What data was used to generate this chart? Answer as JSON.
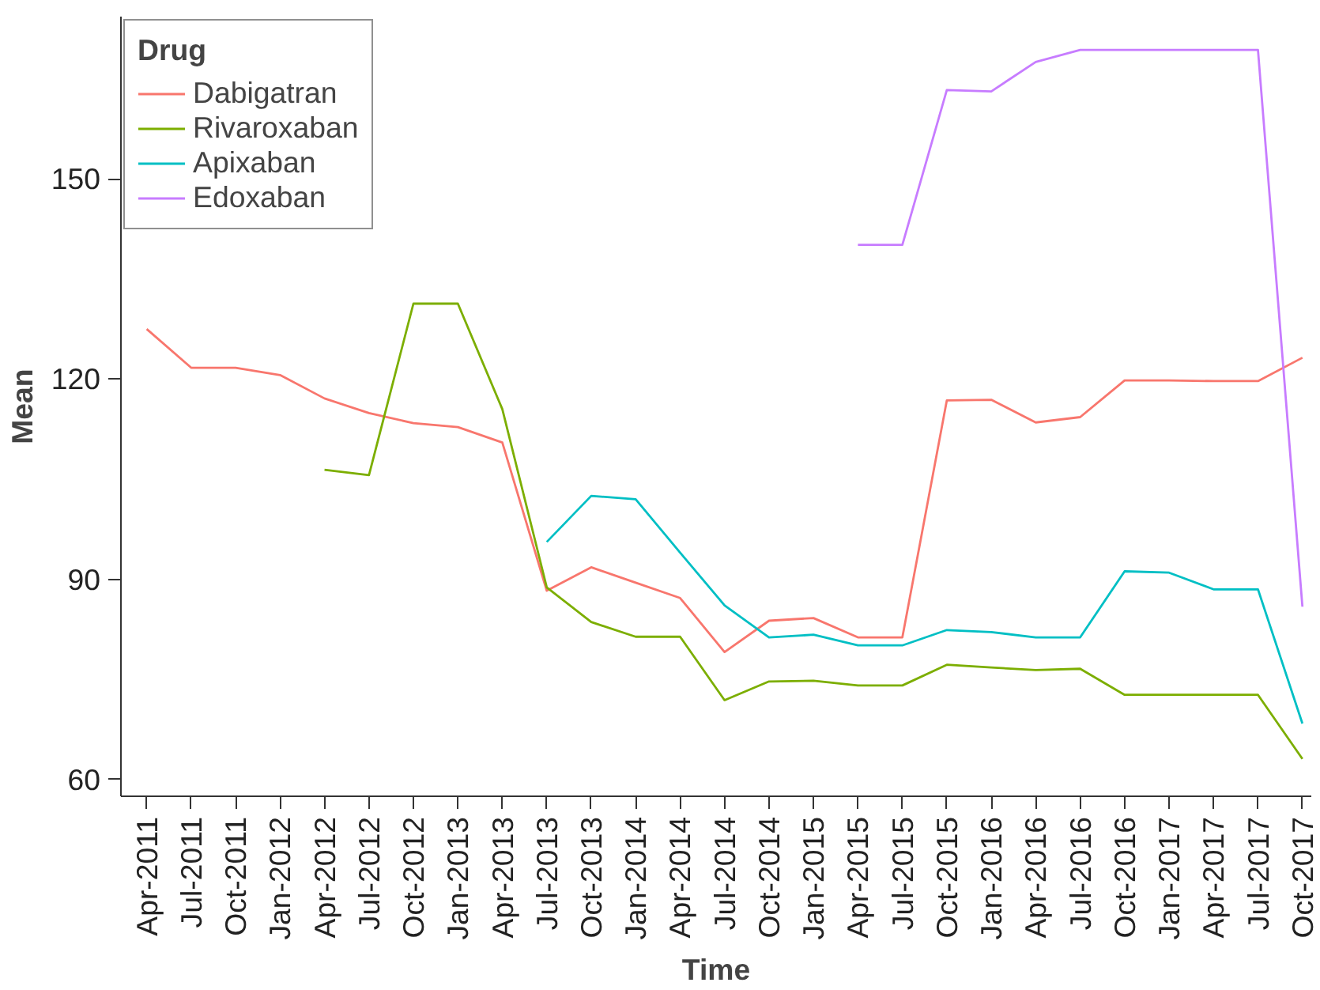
{
  "chart_data": {
    "type": "line",
    "xlabel": "Time",
    "ylabel": "Mean",
    "legend_title": "Drug",
    "legend": "top left",
    "grid": false,
    "categories": [
      "Apr-2011",
      "Jul-2011",
      "Oct-2011",
      "Jan-2012",
      "Apr-2012",
      "Jul-2012",
      "Oct-2012",
      "Jan-2013",
      "Apr-2013",
      "Jul-2013",
      "Oct-2013",
      "Jan-2014",
      "Apr-2014",
      "Jul-2014",
      "Oct-2014",
      "Jan-2015",
      "Apr-2015",
      "Jul-2015",
      "Oct-2015",
      "Jan-2016",
      "Apr-2016",
      "Jul-2016",
      "Oct-2016",
      "Jan-2017",
      "Apr-2017",
      "Jul-2017",
      "Oct-2017"
    ],
    "ylim": [
      57.5,
      174.3
    ],
    "yticks": [
      60,
      90,
      120,
      150
    ],
    "series": [
      {
        "name": "Dabigatran",
        "color": "#f8766d",
        "values": [
          127.5,
          121.7,
          121.7,
          120.6,
          117.1,
          114.9,
          113.4,
          112.8,
          110.5,
          88.3,
          91.8,
          89.5,
          87.2,
          79.1,
          83.8,
          84.2,
          81.3,
          81.3,
          116.8,
          116.9,
          113.5,
          114.3,
          119.8,
          119.8,
          119.7,
          119.7,
          123.2
        ]
      },
      {
        "name": "Rivaroxaban",
        "color": "#7cae00",
        "values": [
          null,
          null,
          null,
          null,
          106.4,
          105.6,
          131.3,
          131.3,
          115.5,
          88.8,
          83.6,
          81.4,
          81.4,
          71.9,
          74.7,
          74.8,
          74.1,
          74.1,
          77.2,
          76.8,
          76.4,
          76.6,
          72.7,
          72.7,
          72.7,
          72.7,
          63.1
        ]
      },
      {
        "name": "Apixaban",
        "color": "#00bfc4",
        "values": [
          null,
          null,
          null,
          null,
          null,
          null,
          null,
          null,
          null,
          95.6,
          102.5,
          102.0,
          94.0,
          86.1,
          81.3,
          81.7,
          80.1,
          80.1,
          82.4,
          82.1,
          81.3,
          81.3,
          91.2,
          91.0,
          88.5,
          88.5,
          68.4
        ]
      },
      {
        "name": "Edoxaban",
        "color": "#c77cff",
        "values": [
          null,
          null,
          null,
          null,
          null,
          null,
          null,
          null,
          null,
          null,
          null,
          null,
          null,
          null,
          null,
          null,
          140.1,
          140.1,
          163.3,
          163.1,
          167.5,
          169.3,
          169.3,
          169.3,
          169.3,
          169.3,
          85.9
        ]
      }
    ]
  }
}
